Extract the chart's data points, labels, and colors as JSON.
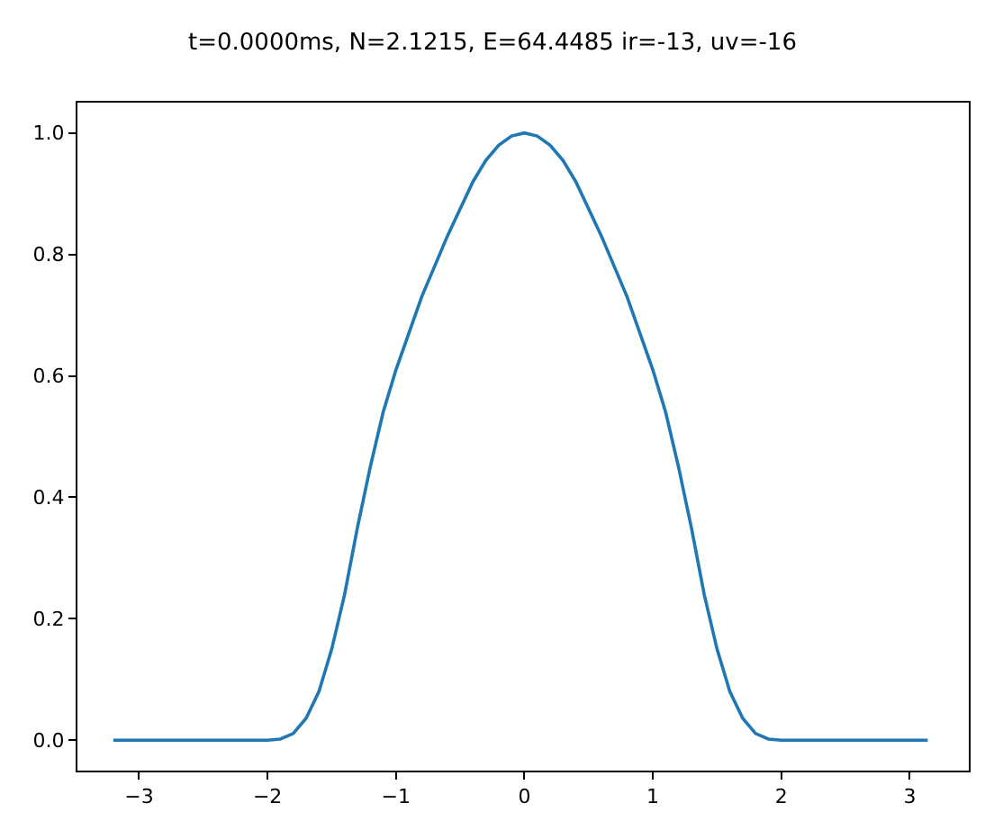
{
  "chart_data": {
    "type": "line",
    "title": "t=0.0000ms, N=2.1215, E=64.4485 ir=-13, uv=-16",
    "x": [
      -3.2,
      -2.5,
      -2.0,
      -1.9,
      -1.8,
      -1.7,
      -1.6,
      -1.5,
      -1.4,
      -1.3,
      -1.2,
      -1.1,
      -1.0,
      -0.9,
      -0.8,
      -0.7,
      -0.6,
      -0.5,
      -0.4,
      -0.3,
      -0.2,
      -0.1,
      0.0,
      0.1,
      0.2,
      0.3,
      0.4,
      0.5,
      0.6,
      0.7,
      0.8,
      0.9,
      1.0,
      1.1,
      1.2,
      1.3,
      1.4,
      1.5,
      1.6,
      1.7,
      1.8,
      1.9,
      2.0,
      2.5,
      3.14
    ],
    "series": [
      {
        "color": "#1f77b4",
        "values": [
          0.0,
          0.0,
          0.0,
          0.002,
          0.011,
          0.036,
          0.08,
          0.15,
          0.24,
          0.35,
          0.45,
          0.54,
          0.61,
          0.67,
          0.73,
          0.78,
          0.83,
          0.875,
          0.92,
          0.955,
          0.98,
          0.995,
          1.0,
          0.995,
          0.98,
          0.955,
          0.92,
          0.875,
          0.83,
          0.78,
          0.73,
          0.67,
          0.61,
          0.54,
          0.45,
          0.35,
          0.24,
          0.15,
          0.08,
          0.036,
          0.011,
          0.002,
          0.0,
          0.0,
          0.0
        ]
      }
    ],
    "xlim": [
      -3.48,
      3.46
    ],
    "ylim": [
      -0.05,
      1.05
    ],
    "xticks": [
      {
        "value": -3,
        "label": "−3"
      },
      {
        "value": -2,
        "label": "−2"
      },
      {
        "value": -1,
        "label": "−1"
      },
      0,
      1,
      2,
      3
    ],
    "yticks": [
      {
        "value": 0,
        "label": "0.0"
      },
      0.2,
      0.4,
      0.6,
      0.8,
      {
        "value": 1,
        "label": "1.0"
      }
    ]
  }
}
